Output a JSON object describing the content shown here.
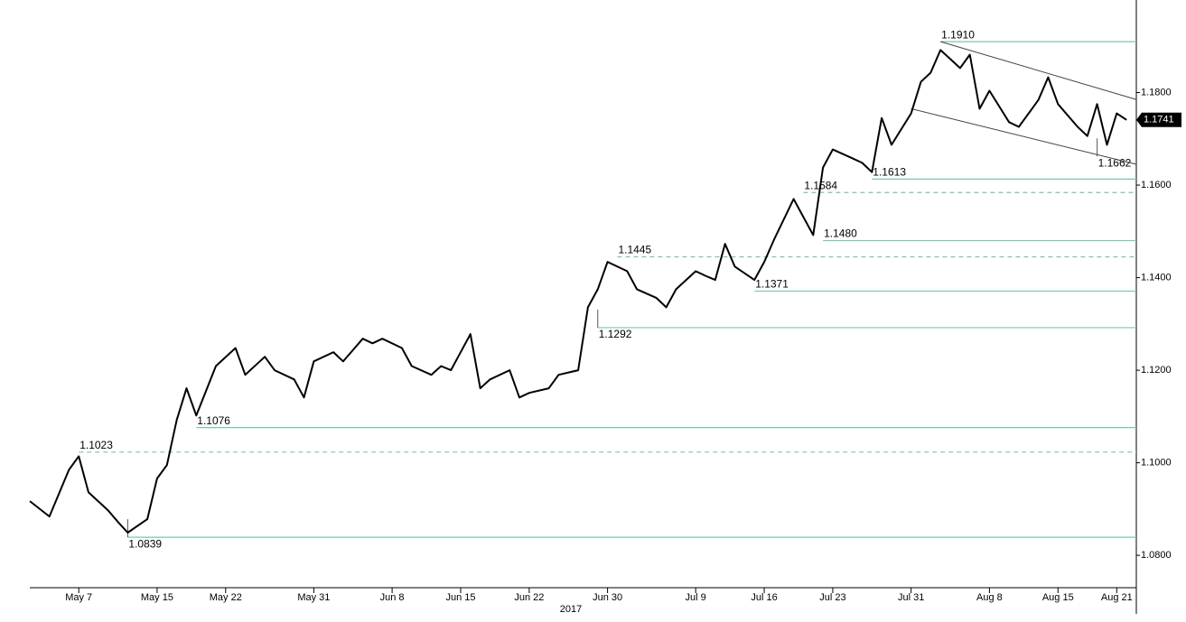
{
  "chart_data": {
    "type": "line",
    "year_label": "2017",
    "x": [
      "2017-05-02",
      "2017-05-04",
      "2017-05-06",
      "2017-05-07",
      "2017-05-08",
      "2017-05-10",
      "2017-05-11",
      "2017-05-12",
      "2017-05-14",
      "2017-05-15",
      "2017-05-16",
      "2017-05-17",
      "2017-05-18",
      "2017-05-19",
      "2017-05-21",
      "2017-05-23",
      "2017-05-24",
      "2017-05-26",
      "2017-05-27",
      "2017-05-29",
      "2017-05-30",
      "2017-05-31",
      "2017-06-02",
      "2017-06-03",
      "2017-06-05",
      "2017-06-06",
      "2017-06-07",
      "2017-06-09",
      "2017-06-10",
      "2017-06-12",
      "2017-06-13",
      "2017-06-14",
      "2017-06-16",
      "2017-06-17",
      "2017-06-18",
      "2017-06-20",
      "2017-06-21",
      "2017-06-22",
      "2017-06-24",
      "2017-06-25",
      "2017-06-27",
      "2017-06-28",
      "2017-06-29",
      "2017-06-30",
      "2017-07-02",
      "2017-07-03",
      "2017-07-05",
      "2017-07-06",
      "2017-07-07",
      "2017-07-09",
      "2017-07-10",
      "2017-07-11",
      "2017-07-12",
      "2017-07-13",
      "2017-07-15",
      "2017-07-16",
      "2017-07-17",
      "2017-07-19",
      "2017-07-20",
      "2017-07-21",
      "2017-07-22",
      "2017-07-23",
      "2017-07-25",
      "2017-07-26",
      "2017-07-27",
      "2017-07-28",
      "2017-07-29",
      "2017-07-31",
      "2017-08-01",
      "2017-08-02",
      "2017-08-03",
      "2017-08-05",
      "2017-08-06",
      "2017-08-07",
      "2017-08-08",
      "2017-08-10",
      "2017-08-11",
      "2017-08-12",
      "2017-08-13",
      "2017-08-14",
      "2017-08-15",
      "2017-08-17",
      "2017-08-18",
      "2017-08-19",
      "2017-08-20",
      "2017-08-21",
      "2017-08-22"
    ],
    "values": [
      1.0917,
      1.0884,
      1.0985,
      1.1014,
      1.0936,
      1.0897,
      1.0872,
      1.0849,
      1.0878,
      1.0966,
      1.0995,
      1.1092,
      1.1161,
      1.1102,
      1.1209,
      1.1248,
      1.119,
      1.1229,
      1.12,
      1.118,
      1.1141,
      1.1219,
      1.1239,
      1.1219,
      1.1268,
      1.1258,
      1.1268,
      1.1248,
      1.1209,
      1.119,
      1.1209,
      1.12,
      1.1278,
      1.1161,
      1.118,
      1.12,
      1.1141,
      1.1151,
      1.1161,
      1.119,
      1.12,
      1.1336,
      1.1375,
      1.1434,
      1.1414,
      1.1375,
      1.1356,
      1.1336,
      1.1375,
      1.1414,
      1.1404,
      1.1395,
      1.1473,
      1.1424,
      1.1395,
      1.1434,
      1.1482,
      1.157,
      1.1531,
      1.1492,
      1.1638,
      1.1677,
      1.1658,
      1.1648,
      1.1628,
      1.1745,
      1.1687,
      1.1755,
      1.1823,
      1.1843,
      1.1892,
      1.1853,
      1.1882,
      1.1765,
      1.1804,
      1.1736,
      1.1726,
      1.1755,
      1.1784,
      1.1833,
      1.1775,
      1.1726,
      1.1706,
      1.1775,
      1.1687,
      1.1755,
      1.1741
    ],
    "color": "#000000",
    "xlim": [
      "2017-05-02",
      "2017-08-23"
    ],
    "xticks": [
      {
        "value": "2017-05-07",
        "label": "May 7"
      },
      {
        "value": "2017-05-15",
        "label": "May 15"
      },
      {
        "value": "2017-05-22",
        "label": "May 22"
      },
      {
        "value": "2017-05-31",
        "label": "May 31"
      },
      {
        "value": "2017-06-08",
        "label": "Jun 8"
      },
      {
        "value": "2017-06-15",
        "label": "Jun 15"
      },
      {
        "value": "2017-06-22",
        "label": "Jun 22"
      },
      {
        "value": "2017-06-30",
        "label": "Jun 30"
      },
      {
        "value": "2017-07-09",
        "label": "Jul 9"
      },
      {
        "value": "2017-07-16",
        "label": "Jul 16"
      },
      {
        "value": "2017-07-23",
        "label": "Jul 23"
      },
      {
        "value": "2017-07-31",
        "label": "Jul 31"
      },
      {
        "value": "2017-08-08",
        "label": "Aug 8"
      },
      {
        "value": "2017-08-15",
        "label": "Aug 15"
      },
      {
        "value": "2017-08-21",
        "label": "Aug 21"
      }
    ],
    "ylim": [
      1.073,
      1.2
    ],
    "yticks": [
      {
        "value": 1.08,
        "label": "1.0800"
      },
      {
        "value": 1.1,
        "label": "1.1000"
      },
      {
        "value": 1.12,
        "label": "1.1200"
      },
      {
        "value": 1.14,
        "label": "1.1400"
      },
      {
        "value": 1.16,
        "label": "1.1600"
      },
      {
        "value": 1.18,
        "label": "1.1800"
      }
    ],
    "last_price": {
      "value": 1.1741,
      "label": "1.1741"
    },
    "level_color": "#7fc4b0",
    "annotations": [
      {
        "value": 1.191,
        "label": "1.1910",
        "start": "2017-08-03",
        "style": "solid",
        "position": "above"
      },
      {
        "value": 1.1662,
        "label": "1.1662",
        "start": "2017-08-19",
        "style": "none",
        "position": "below"
      },
      {
        "value": 1.1613,
        "label": "1.1613",
        "start": "2017-07-27",
        "style": "solid",
        "position": "above"
      },
      {
        "value": 1.1584,
        "label": "1.1584",
        "start": "2017-07-20",
        "style": "dashed",
        "position": "above"
      },
      {
        "value": 1.148,
        "label": "1.1480",
        "start": "2017-07-22",
        "style": "solid",
        "position": "above"
      },
      {
        "value": 1.1445,
        "label": "1.1445",
        "start": "2017-07-01",
        "style": "dashed",
        "position": "above"
      },
      {
        "value": 1.1371,
        "label": "1.1371",
        "start": "2017-07-15",
        "style": "solid",
        "position": "above"
      },
      {
        "value": 1.1292,
        "label": "1.1292",
        "start": "2017-06-29",
        "style": "solid",
        "position": "below"
      },
      {
        "value": 1.1076,
        "label": "1.1076",
        "start": "2017-05-19",
        "style": "solid",
        "position": "above"
      },
      {
        "value": 1.1023,
        "label": "1.1023",
        "start": "2017-05-07",
        "style": "dashed",
        "position": "above"
      },
      {
        "value": 1.0839,
        "label": "1.0839",
        "start": "2017-05-12",
        "style": "solid",
        "position": "below"
      }
    ],
    "trendlines": [
      {
        "x": [
          "2017-08-03",
          "2017-08-23"
        ],
        "y": [
          1.191,
          1.1785
        ]
      },
      {
        "x": [
          "2017-07-31",
          "2017-08-23"
        ],
        "y": [
          1.1765,
          1.1645
        ]
      }
    ]
  }
}
